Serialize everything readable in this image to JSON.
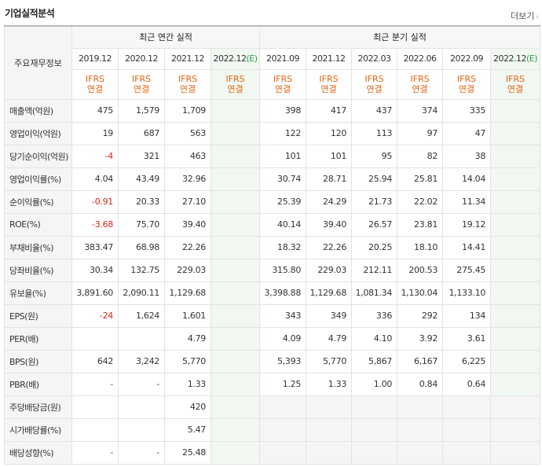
{
  "header": {
    "title": "기업실적분석",
    "more_label": "더보기",
    "more_arrow": "›"
  },
  "table": {
    "row_header_label": "주요재무정보",
    "groups": [
      {
        "label": "최근 연간 실적",
        "span": 4
      },
      {
        "label": "최근 분기 실적",
        "span": 6
      }
    ],
    "periods": [
      {
        "label": "2019.12",
        "estimate": false
      },
      {
        "label": "2020.12",
        "estimate": false
      },
      {
        "label": "2021.12",
        "estimate": false
      },
      {
        "label": "2022.12",
        "estimate": true
      },
      {
        "label": "2021.09",
        "estimate": false
      },
      {
        "label": "2021.12",
        "estimate": false
      },
      {
        "label": "2022.03",
        "estimate": false
      },
      {
        "label": "2022.06",
        "estimate": false
      },
      {
        "label": "2022.09",
        "estimate": false
      },
      {
        "label": "2022.12",
        "estimate": true
      }
    ],
    "estimate_mark": "(E)",
    "ifrs_line1": "IFRS",
    "ifrs_line2": "연결",
    "rows": [
      {
        "label": "매출액(억원)",
        "section_start": false,
        "values": [
          "475",
          "1,579",
          "1,709",
          "",
          "398",
          "417",
          "437",
          "374",
          "335",
          ""
        ]
      },
      {
        "label": "영업이익(억원)",
        "section_start": false,
        "values": [
          "19",
          "687",
          "563",
          "",
          "122",
          "120",
          "113",
          "97",
          "47",
          ""
        ]
      },
      {
        "label": "당기순이익(억원)",
        "section_start": false,
        "values": [
          "-4",
          "321",
          "463",
          "",
          "101",
          "101",
          "95",
          "82",
          "38",
          ""
        ]
      },
      {
        "label": "영업이익률(%)",
        "section_start": true,
        "values": [
          "4.04",
          "43.49",
          "32.96",
          "",
          "30.74",
          "28.71",
          "25.94",
          "25.81",
          "14.04",
          ""
        ]
      },
      {
        "label": "순이익률(%)",
        "section_start": false,
        "values": [
          "-0.91",
          "20.33",
          "27.10",
          "",
          "25.39",
          "24.29",
          "21.73",
          "22.02",
          "11.34",
          ""
        ]
      },
      {
        "label": "ROE(%)",
        "section_start": false,
        "values": [
          "-3.68",
          "75.70",
          "39.40",
          "",
          "40.14",
          "39.40",
          "26.57",
          "23.81",
          "19.12",
          ""
        ]
      },
      {
        "label": "부채비율(%)",
        "section_start": true,
        "values": [
          "383.47",
          "68.98",
          "22.26",
          "",
          "18.32",
          "22.26",
          "20.25",
          "18.10",
          "14.41",
          ""
        ]
      },
      {
        "label": "당좌비율(%)",
        "section_start": false,
        "values": [
          "30.34",
          "132.75",
          "229.03",
          "",
          "315.80",
          "229.03",
          "212.11",
          "200.53",
          "275.45",
          ""
        ]
      },
      {
        "label": "유보율(%)",
        "section_start": false,
        "values": [
          "3,891.60",
          "2,090.11",
          "1,129.68",
          "",
          "3,398.88",
          "1,129.68",
          "1,081.34",
          "1,130.04",
          "1,133.10",
          ""
        ]
      },
      {
        "label": "EPS(원)",
        "section_start": true,
        "values": [
          "-24",
          "1,624",
          "1,601",
          "",
          "343",
          "349",
          "336",
          "292",
          "134",
          ""
        ]
      },
      {
        "label": "PER(배)",
        "section_start": false,
        "values": [
          "",
          "",
          "4.79",
          "",
          "4.09",
          "4.79",
          "4.10",
          "3.92",
          "3.61",
          ""
        ]
      },
      {
        "label": "BPS(원)",
        "section_start": false,
        "values": [
          "642",
          "3,242",
          "5,770",
          "",
          "5,393",
          "5,770",
          "5,867",
          "6,167",
          "6,225",
          ""
        ]
      },
      {
        "label": "PBR(배)",
        "section_start": false,
        "values": [
          "-",
          "-",
          "1.33",
          "",
          "1.25",
          "1.33",
          "1.00",
          "0.84",
          "0.64",
          ""
        ]
      },
      {
        "label": "주당배당금(원)",
        "section_start": true,
        "quarter_na": true,
        "values": [
          "",
          "",
          "420",
          "",
          "",
          "",
          "",
          "",
          "",
          ""
        ]
      },
      {
        "label": "시가배당률(%)",
        "section_start": false,
        "quarter_na": true,
        "values": [
          "",
          "",
          "5.47",
          "",
          "",
          "",
          "",
          "",
          "",
          ""
        ]
      },
      {
        "label": "배당성향(%)",
        "section_start": false,
        "quarter_na": true,
        "values": [
          "-",
          "-",
          "25.48",
          "",
          "",
          "",
          "",
          "",
          "",
          ""
        ]
      }
    ]
  },
  "colors": {
    "negative": "#d9261c",
    "ifrs": "#e36414",
    "estimate_mark": "#2e9d45",
    "estimate_bg": "#f1f8f1"
  }
}
